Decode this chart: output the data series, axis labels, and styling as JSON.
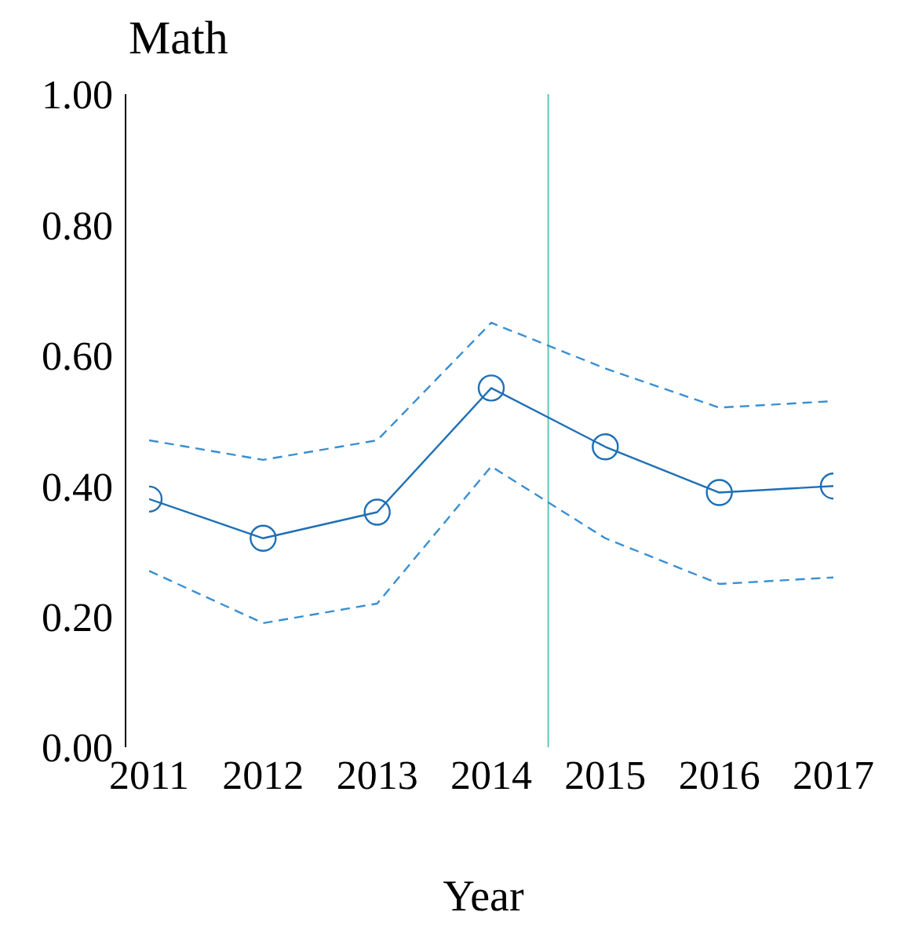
{
  "chart_data": {
    "type": "line",
    "title": "Math",
    "xlabel": "Year",
    "x": [
      2011,
      2012,
      2013,
      2014,
      2015,
      2016,
      2017
    ],
    "series": [
      {
        "color": "#1f6fb5",
        "values": [
          0.38,
          0.32,
          0.36,
          0.55,
          0.46,
          0.39,
          0.4
        ]
      },
      {
        "color": "#3a8fd0",
        "line_style": "dashed",
        "marker": "none",
        "values": [
          0.47,
          0.44,
          0.47,
          0.65,
          0.58,
          0.52,
          0.53
        ]
      },
      {
        "color": "#3a8fd0",
        "line_style": "dashed",
        "marker": "none",
        "values": [
          0.27,
          0.19,
          0.22,
          0.43,
          0.32,
          0.25,
          0.26
        ]
      }
    ],
    "xlim": [
      2011,
      2017
    ],
    "xticks": [
      2011,
      2012,
      2013,
      2014,
      2015,
      2016,
      2017
    ],
    "ylim": [
      0,
      1
    ],
    "yticks": [
      {
        "value": 0,
        "label": "0.00"
      },
      {
        "value": 0.2,
        "label": "0.20"
      },
      {
        "value": 0.4,
        "label": "0.40"
      },
      {
        "value": 0.6,
        "label": "0.60"
      },
      {
        "value": 0.8,
        "label": "0.80"
      },
      {
        "value": 1,
        "label": "1.00"
      }
    ],
    "ref_lines": [
      {
        "axis": "x",
        "value": 2014.5,
        "color": "#5cc6bf"
      }
    ],
    "grid": false,
    "legend": false,
    "marker": "circle",
    "line_style": "solid"
  }
}
